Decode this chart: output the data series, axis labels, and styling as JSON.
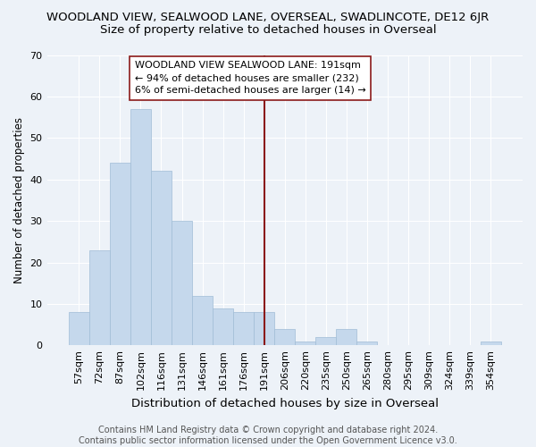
{
  "title": "WOODLAND VIEW, SEALWOOD LANE, OVERSEAL, SWADLINCOTE, DE12 6JR",
  "subtitle": "Size of property relative to detached houses in Overseal",
  "xlabel": "Distribution of detached houses by size in Overseal",
  "ylabel": "Number of detached properties",
  "categories": [
    "57sqm",
    "72sqm",
    "87sqm",
    "102sqm",
    "116sqm",
    "131sqm",
    "146sqm",
    "161sqm",
    "176sqm",
    "191sqm",
    "206sqm",
    "220sqm",
    "235sqm",
    "250sqm",
    "265sqm",
    "280sqm",
    "295sqm",
    "309sqm",
    "324sqm",
    "339sqm",
    "354sqm"
  ],
  "values": [
    8,
    23,
    44,
    57,
    42,
    30,
    12,
    9,
    8,
    8,
    4,
    1,
    2,
    4,
    1,
    0,
    0,
    0,
    0,
    0,
    1
  ],
  "bar_color": "#c5d8ec",
  "bar_edge_color": "#a0bcd6",
  "vline_x_index": 9,
  "vline_color": "#8b1a1a",
  "annotation_text": "WOODLAND VIEW SEALWOOD LANE: 191sqm\n← 94% of detached houses are smaller (232)\n6% of semi-detached houses are larger (14) →",
  "annotation_box_color": "#ffffff",
  "annotation_border_color": "#8b1a1a",
  "ylim": [
    0,
    70
  ],
  "yticks": [
    0,
    10,
    20,
    30,
    40,
    50,
    60,
    70
  ],
  "background_color": "#edf2f8",
  "plot_bg_color": "#edf2f8",
  "footer": "Contains HM Land Registry data © Crown copyright and database right 2024.\nContains public sector information licensed under the Open Government Licence v3.0.",
  "title_fontsize": 9.5,
  "subtitle_fontsize": 9.5,
  "xlabel_fontsize": 9.5,
  "ylabel_fontsize": 8.5,
  "tick_fontsize": 8,
  "annotation_fontsize": 8,
  "footer_fontsize": 7
}
